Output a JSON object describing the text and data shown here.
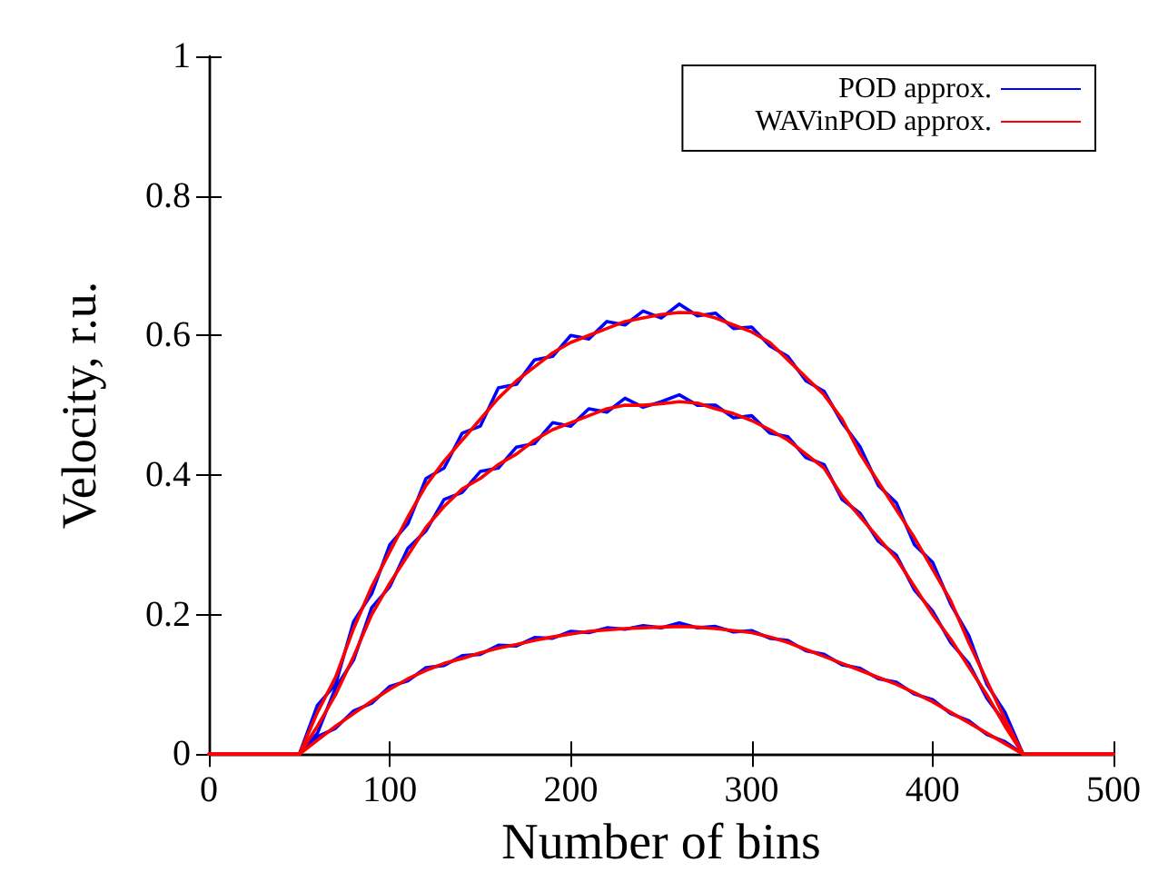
{
  "chart_data": {
    "type": "line",
    "xlabel": "Number of bins",
    "ylabel": "Velocity, r.u.",
    "xlim": [
      0,
      500
    ],
    "xticks": [
      0,
      100,
      200,
      300,
      400,
      500
    ],
    "ylim": [
      0,
      1
    ],
    "yticks": [
      0,
      0.2,
      0.4,
      0.6,
      0.8,
      1
    ],
    "grid": false,
    "legend": "top right",
    "marker": "none",
    "line_style": "solid",
    "x": [
      0,
      50,
      60,
      70,
      80,
      90,
      100,
      110,
      120,
      130,
      140,
      150,
      160,
      170,
      180,
      190,
      200,
      210,
      220,
      230,
      240,
      250,
      260,
      270,
      280,
      290,
      300,
      310,
      320,
      330,
      340,
      350,
      360,
      370,
      380,
      390,
      400,
      410,
      420,
      430,
      440,
      450,
      500
    ],
    "series": [
      {
        "name": "POD approx.",
        "color": "#0000ff",
        "values": [
          0,
          0,
          0.07,
          0.1,
          0.19,
          0.23,
          0.3,
          0.33,
          0.395,
          0.41,
          0.46,
          0.47,
          0.525,
          0.53,
          0.565,
          0.57,
          0.6,
          0.595,
          0.62,
          0.615,
          0.635,
          0.625,
          0.645,
          0.628,
          0.632,
          0.61,
          0.612,
          0.585,
          0.57,
          0.535,
          0.52,
          0.475,
          0.44,
          0.385,
          0.36,
          0.3,
          0.275,
          0.215,
          0.17,
          0.1,
          0.06,
          0,
          0
        ]
      },
      {
        "color": "#0000ff",
        "values": [
          0,
          0,
          0.03,
          0.095,
          0.135,
          0.21,
          0.24,
          0.295,
          0.32,
          0.365,
          0.375,
          0.405,
          0.41,
          0.44,
          0.445,
          0.475,
          0.47,
          0.495,
          0.49,
          0.51,
          0.497,
          0.505,
          0.515,
          0.5,
          0.5,
          0.482,
          0.485,
          0.46,
          0.455,
          0.425,
          0.415,
          0.365,
          0.345,
          0.305,
          0.285,
          0.235,
          0.205,
          0.16,
          0.13,
          0.08,
          0.045,
          0,
          0
        ]
      },
      {
        "color": "#0000ff",
        "values": [
          0,
          0,
          0.025,
          0.037,
          0.062,
          0.073,
          0.097,
          0.105,
          0.124,
          0.127,
          0.141,
          0.143,
          0.156,
          0.155,
          0.167,
          0.166,
          0.176,
          0.174,
          0.181,
          0.179,
          0.184,
          0.181,
          0.188,
          0.181,
          0.183,
          0.175,
          0.177,
          0.166,
          0.163,
          0.148,
          0.143,
          0.128,
          0.123,
          0.108,
          0.103,
          0.086,
          0.078,
          0.058,
          0.048,
          0.028,
          0.018,
          0,
          0
        ]
      },
      {
        "name": "WAVinPOD approx.",
        "color": "#ff0000",
        "values": [
          0,
          0,
          0.06,
          0.11,
          0.18,
          0.24,
          0.29,
          0.34,
          0.385,
          0.42,
          0.45,
          0.48,
          0.51,
          0.535,
          0.555,
          0.575,
          0.59,
          0.6,
          0.61,
          0.62,
          0.625,
          0.63,
          0.633,
          0.632,
          0.625,
          0.615,
          0.605,
          0.59,
          0.565,
          0.54,
          0.515,
          0.48,
          0.43,
          0.39,
          0.35,
          0.31,
          0.265,
          0.22,
          0.16,
          0.105,
          0.05,
          0,
          0
        ]
      },
      {
        "color": "#ff0000",
        "values": [
          0,
          0,
          0.04,
          0.085,
          0.14,
          0.2,
          0.245,
          0.285,
          0.325,
          0.355,
          0.38,
          0.395,
          0.415,
          0.43,
          0.45,
          0.465,
          0.475,
          0.485,
          0.495,
          0.5,
          0.5,
          0.502,
          0.505,
          0.503,
          0.495,
          0.488,
          0.478,
          0.465,
          0.45,
          0.43,
          0.41,
          0.37,
          0.34,
          0.31,
          0.28,
          0.24,
          0.2,
          0.165,
          0.125,
          0.085,
          0.04,
          0,
          0
        ]
      },
      {
        "color": "#ff0000",
        "values": [
          0,
          0,
          0.02,
          0.04,
          0.058,
          0.076,
          0.093,
          0.108,
          0.12,
          0.13,
          0.137,
          0.145,
          0.152,
          0.157,
          0.163,
          0.168,
          0.172,
          0.176,
          0.178,
          0.18,
          0.181,
          0.182,
          0.183,
          0.182,
          0.18,
          0.177,
          0.174,
          0.168,
          0.16,
          0.15,
          0.14,
          0.13,
          0.12,
          0.11,
          0.1,
          0.088,
          0.075,
          0.06,
          0.045,
          0.03,
          0.015,
          0,
          0
        ]
      }
    ]
  }
}
